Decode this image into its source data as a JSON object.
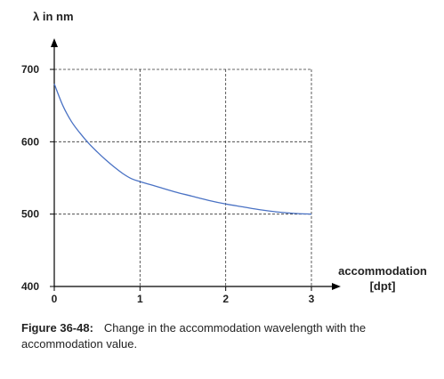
{
  "chart_data": {
    "type": "line",
    "ylabel": "λ in nm",
    "xlabel": "accommodation",
    "xlabel_unit": "[dpt]",
    "xlim": [
      0,
      3
    ],
    "ylim": [
      400,
      700
    ],
    "x_ticks": [
      "0",
      "1",
      "2",
      "3"
    ],
    "y_ticks": [
      "700",
      "600",
      "500",
      "400"
    ],
    "grid": "dashed",
    "series": [
      {
        "x": [
          0,
          0.1,
          0.2,
          0.3,
          0.4,
          0.5,
          0.6,
          0.7,
          0.8,
          0.9,
          1.0,
          1.2,
          1.4,
          1.6,
          1.8,
          2.0,
          2.2,
          2.4,
          2.6,
          2.8,
          3.0
        ],
        "values": [
          680,
          650,
          628,
          612,
          598,
          586,
          575,
          565,
          556,
          549,
          545,
          538,
          531,
          525,
          519,
          514,
          510,
          506,
          503,
          501,
          500
        ]
      }
    ],
    "colors": {
      "line": "#4a72c4",
      "axis": "#000000",
      "grid": "#333333"
    }
  },
  "caption": {
    "label": "Figure 36-48:",
    "text": "Change in the accommodation wavelength with the accommodation value."
  }
}
